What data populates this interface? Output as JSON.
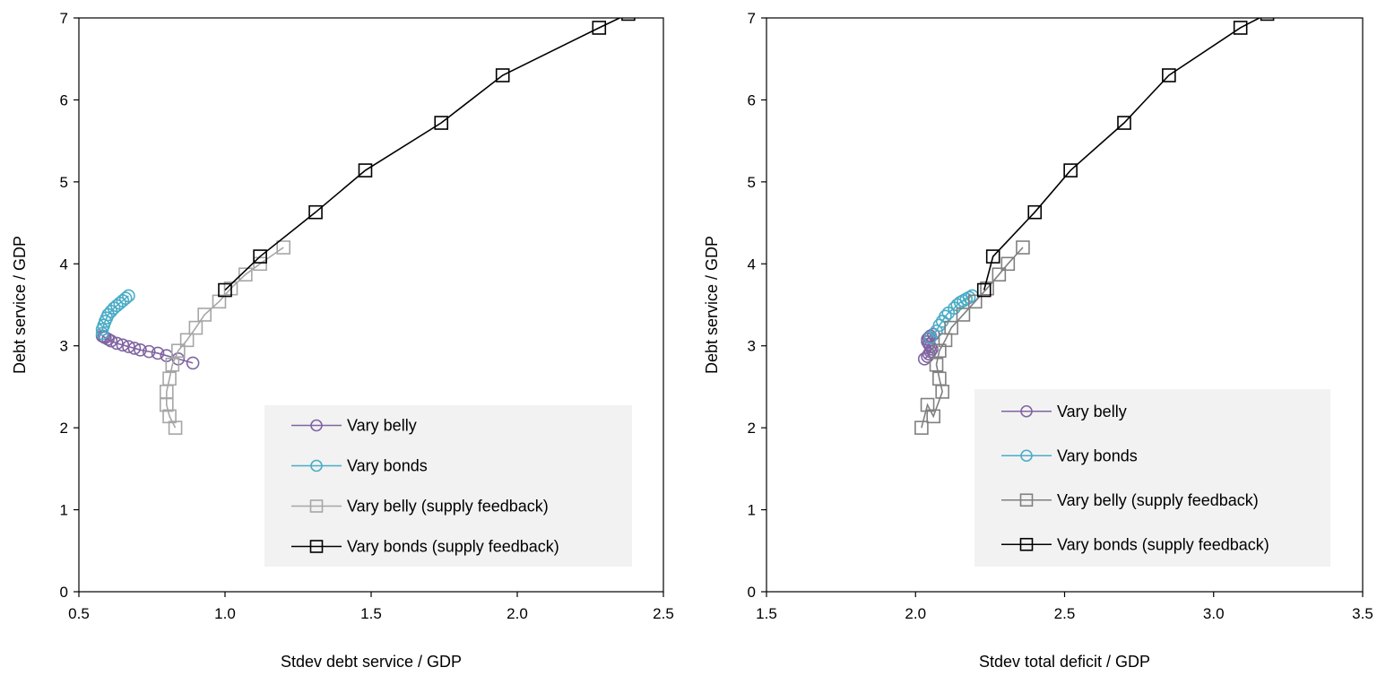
{
  "chart_data": [
    {
      "type": "scatter",
      "xlabel": "Stdev debt service / GDP",
      "ylabel": "Debt service / GDP",
      "xlim": [
        0.5,
        2.5
      ],
      "ylim": [
        0,
        7
      ],
      "xticks": [
        "0.5",
        "1.0",
        "1.5",
        "2.0",
        "2.5"
      ],
      "yticks": [
        "0",
        "1",
        "2",
        "3",
        "4",
        "5",
        "6",
        "7"
      ],
      "grid": false,
      "legend_position": "bottom-right",
      "series": [
        {
          "name": "Vary belly",
          "color": "#8064a2",
          "marker": "circle",
          "x": [
            0.89,
            0.84,
            0.8,
            0.77,
            0.74,
            0.71,
            0.69,
            0.67,
            0.65,
            0.63,
            0.61,
            0.6,
            0.59,
            0.585,
            0.58
          ],
          "y": [
            2.79,
            2.84,
            2.88,
            2.91,
            2.93,
            2.95,
            2.97,
            2.99,
            3.01,
            3.03,
            3.06,
            3.08,
            3.1,
            3.11,
            3.12
          ]
        },
        {
          "name": "Vary bonds",
          "color": "#4bacc6",
          "marker": "circle",
          "x": [
            0.58,
            0.58,
            0.585,
            0.59,
            0.595,
            0.6,
            0.61,
            0.62,
            0.63,
            0.64,
            0.65,
            0.66,
            0.67
          ],
          "y": [
            3.15,
            3.2,
            3.25,
            3.3,
            3.34,
            3.38,
            3.42,
            3.46,
            3.49,
            3.52,
            3.55,
            3.58,
            3.61
          ]
        },
        {
          "name": "Vary belly (supply feedback)",
          "color": "#a6a6a6",
          "marker": "square",
          "x": [
            0.83,
            0.81,
            0.8,
            0.8,
            0.81,
            0.82,
            0.84,
            0.87,
            0.9,
            0.93,
            0.98,
            1.02,
            1.07,
            1.12,
            1.2
          ],
          "y": [
            2.0,
            2.14,
            2.28,
            2.44,
            2.6,
            2.77,
            2.94,
            3.07,
            3.22,
            3.38,
            3.54,
            3.7,
            3.87,
            4.0,
            4.2
          ]
        },
        {
          "name": "Vary bonds (supply feedback)",
          "color": "#000000",
          "marker": "square",
          "x": [
            1.0,
            1.12,
            1.31,
            1.48,
            1.74,
            1.95,
            2.28,
            2.38
          ],
          "y": [
            3.68,
            4.09,
            4.63,
            5.14,
            5.72,
            6.3,
            6.88,
            7.05
          ]
        }
      ]
    },
    {
      "type": "scatter",
      "xlabel": "Stdev total deficit / GDP",
      "ylabel": "Debt service / GDP",
      "xlim": [
        1.5,
        3.5
      ],
      "ylim": [
        0,
        7
      ],
      "xticks": [
        "1.5",
        "2.0",
        "2.5",
        "3.0",
        "3.5"
      ],
      "yticks": [
        "0",
        "1",
        "2",
        "3",
        "4",
        "5",
        "6",
        "7"
      ],
      "grid": false,
      "legend_position": "bottom-right",
      "series": [
        {
          "name": "Vary belly",
          "color": "#8064a2",
          "marker": "circle",
          "x": [
            2.03,
            2.04,
            2.045,
            2.05,
            2.055,
            2.05,
            2.045,
            2.04,
            2.04,
            2.045,
            2.05,
            2.06
          ],
          "y": [
            2.84,
            2.87,
            2.9,
            2.93,
            2.96,
            2.99,
            3.02,
            3.05,
            3.08,
            3.1,
            3.12,
            3.14
          ]
        },
        {
          "name": "Vary bonds",
          "color": "#4bacc6",
          "marker": "circle",
          "x": [
            2.05,
            2.07,
            2.08,
            2.09,
            2.1,
            2.11,
            2.13,
            2.14,
            2.15,
            2.16,
            2.17,
            2.18,
            2.19
          ],
          "y": [
            3.1,
            3.18,
            3.25,
            3.3,
            3.36,
            3.4,
            3.46,
            3.5,
            3.53,
            3.55,
            3.57,
            3.59,
            3.61
          ]
        },
        {
          "name": "Vary belly (supply feedback)",
          "color": "#808080",
          "marker": "square",
          "x": [
            2.02,
            2.04,
            2.06,
            2.09,
            2.08,
            2.07,
            2.08,
            2.1,
            2.12,
            2.16,
            2.2,
            2.24,
            2.28,
            2.31,
            2.36
          ],
          "y": [
            2.0,
            2.28,
            2.14,
            2.44,
            2.6,
            2.77,
            2.94,
            3.07,
            3.22,
            3.38,
            3.54,
            3.7,
            3.87,
            4.0,
            4.2
          ]
        },
        {
          "name": "Vary bonds (supply feedback)",
          "color": "#000000",
          "marker": "square",
          "x": [
            2.23,
            2.26,
            2.4,
            2.52,
            2.7,
            2.85,
            3.09,
            3.18
          ],
          "y": [
            3.68,
            4.09,
            4.63,
            5.14,
            5.72,
            6.3,
            6.88,
            7.05
          ]
        }
      ]
    }
  ]
}
